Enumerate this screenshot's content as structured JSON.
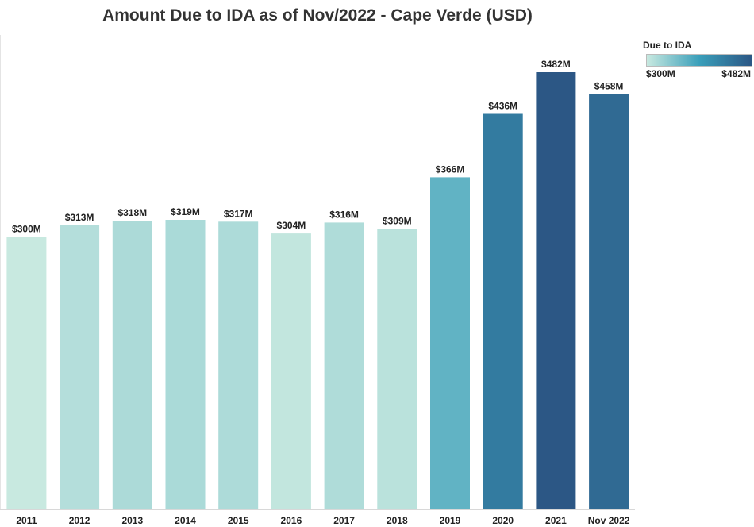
{
  "chart_data": {
    "type": "bar",
    "title": "Amount Due to IDA as of Nov/2022 - Cape Verde (USD)",
    "categories": [
      "2011",
      "2012",
      "2013",
      "2014",
      "2015",
      "2016",
      "2017",
      "2018",
      "2019",
      "2020",
      "2021",
      "Nov 2022"
    ],
    "values": [
      300,
      313,
      318,
      319,
      317,
      304,
      316,
      309,
      366,
      436,
      482,
      458
    ],
    "data_labels": [
      "$300M",
      "$313M",
      "$318M",
      "$319M",
      "$317M",
      "$304M",
      "$316M",
      "$309M",
      "$366M",
      "$436M",
      "$482M",
      "$458M"
    ],
    "unit": "USD millions",
    "ylim": [
      0,
      482
    ],
    "xlabel": "",
    "ylabel": "",
    "grid": false,
    "color_scale": {
      "min_color": "#c8e9e0",
      "mid_color": "#3a9fba",
      "max_color": "#2c5785"
    },
    "legend": {
      "title": "Due to IDA",
      "min_label": "$300M",
      "max_label": "$482M",
      "placement": "top-right"
    }
  }
}
